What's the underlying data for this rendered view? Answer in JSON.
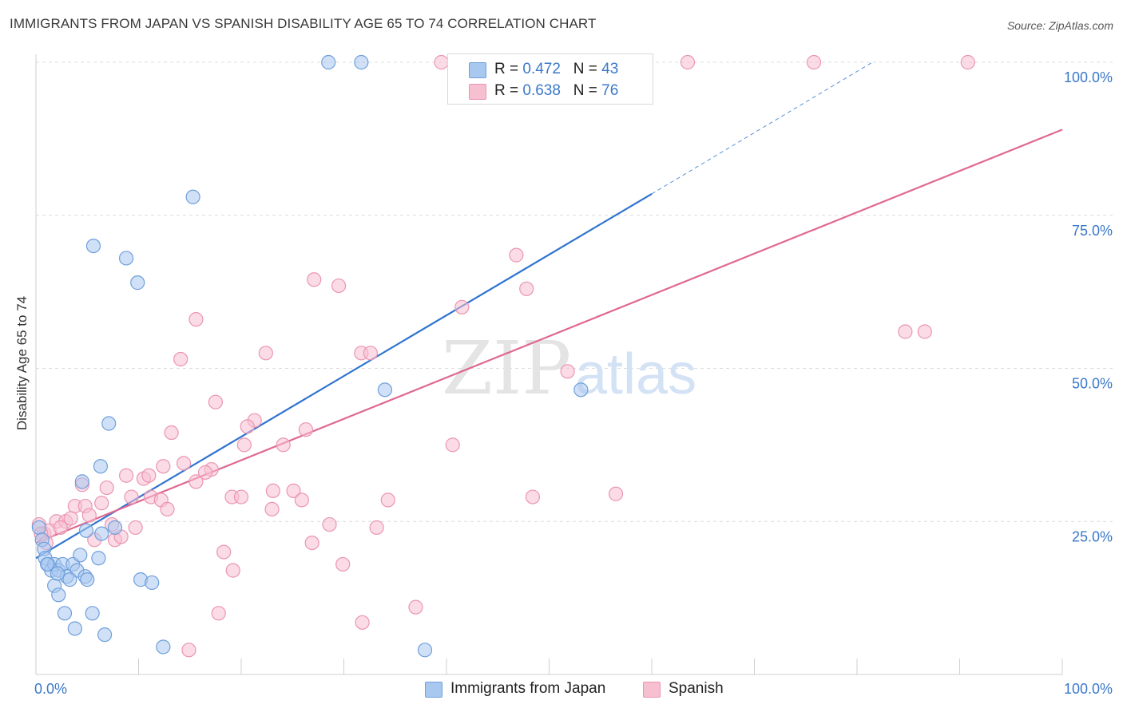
{
  "title": "IMMIGRANTS FROM JAPAN VS SPANISH DISABILITY AGE 65 TO 74 CORRELATION CHART",
  "source": "Source: ZipAtlas.com",
  "watermark": {
    "zip": "ZIP",
    "atlas": "atlas"
  },
  "colors": {
    "japan_fill": "#a9c8f0",
    "japan_stroke": "#6f9fdb",
    "japan_line": "#2f74d0",
    "spanish_fill": "#f7c0d1",
    "spanish_stroke": "#ea95b1",
    "spanish_line": "#e06890",
    "axis_label": "#3a78c9",
    "grid": "#dcdcdc"
  },
  "legend": {
    "japan": {
      "r_label": "R = ",
      "r_value": "0.472",
      "n_label": "N = ",
      "n_value": "43"
    },
    "spanish": {
      "r_label": "R = ",
      "r_value": "0.638",
      "n_label": "N = ",
      "n_value": "76"
    }
  },
  "bottom_legend": {
    "japan": "Immigrants from Japan",
    "spanish": "Spanish"
  },
  "chart_data": {
    "type": "scatter",
    "ylabel": "Disability Age 65 to 74",
    "xlim": [
      0,
      100
    ],
    "ylim": [
      0,
      100
    ],
    "x_tick_labels": [
      "0.0%",
      "100.0%"
    ],
    "y_tick_labels": [
      "25.0%",
      "50.0%",
      "75.0%",
      "100.0%"
    ],
    "y_ticks": [
      25,
      50,
      75,
      100
    ],
    "grid": true,
    "legend_position": "top-center",
    "series": [
      {
        "name": "Immigrants from Japan",
        "points": [
          [
            28.5,
            100
          ],
          [
            31.7,
            100
          ],
          [
            15.3,
            78
          ],
          [
            5.6,
            70
          ],
          [
            8.8,
            68
          ],
          [
            9.9,
            64
          ],
          [
            34.0,
            46.5
          ],
          [
            53.1,
            46.5
          ],
          [
            7.1,
            41
          ],
          [
            6.3,
            34
          ],
          [
            4.5,
            31.5
          ],
          [
            0.3,
            24
          ],
          [
            0.6,
            22
          ],
          [
            0.8,
            20.5
          ],
          [
            0.9,
            19
          ],
          [
            1.2,
            18
          ],
          [
            1.5,
            17
          ],
          [
            1.8,
            18
          ],
          [
            2.2,
            17
          ],
          [
            2.6,
            18
          ],
          [
            3.0,
            16
          ],
          [
            3.6,
            18
          ],
          [
            4.0,
            17
          ],
          [
            4.3,
            19.5
          ],
          [
            4.8,
            16
          ],
          [
            5.0,
            15.5
          ],
          [
            6.1,
            19
          ],
          [
            7.7,
            24
          ],
          [
            6.4,
            23
          ],
          [
            1.8,
            14.5
          ],
          [
            2.2,
            13
          ],
          [
            2.8,
            10
          ],
          [
            3.8,
            7.5
          ],
          [
            5.5,
            10
          ],
          [
            6.7,
            6.5
          ],
          [
            10.2,
            15.5
          ],
          [
            11.3,
            15
          ],
          [
            12.4,
            4.5
          ],
          [
            37.9,
            4
          ],
          [
            1.1,
            18
          ],
          [
            2.1,
            16.5
          ],
          [
            3.3,
            15.5
          ],
          [
            4.9,
            23.5
          ]
        ]
      },
      {
        "name": "Spanish",
        "points": [
          [
            39.5,
            100
          ],
          [
            63.5,
            100
          ],
          [
            75.8,
            100
          ],
          [
            90.8,
            100
          ],
          [
            46.8,
            68.5
          ],
          [
            47.8,
            63
          ],
          [
            27.1,
            64.5
          ],
          [
            29.5,
            63.5
          ],
          [
            41.5,
            60
          ],
          [
            15.6,
            58
          ],
          [
            84.7,
            56
          ],
          [
            86.6,
            56
          ],
          [
            22.4,
            52.5
          ],
          [
            31.7,
            52.5
          ],
          [
            32.6,
            52.5
          ],
          [
            14.1,
            51.5
          ],
          [
            51.8,
            49.5
          ],
          [
            17.5,
            44.5
          ],
          [
            21.3,
            41.5
          ],
          [
            20.6,
            40.5
          ],
          [
            26.3,
            40
          ],
          [
            13.2,
            39.5
          ],
          [
            20.3,
            37.5
          ],
          [
            24.1,
            37.5
          ],
          [
            40.6,
            37.5
          ],
          [
            12.4,
            34
          ],
          [
            14.4,
            34.5
          ],
          [
            17.1,
            33.5
          ],
          [
            16.5,
            33
          ],
          [
            8.8,
            32.5
          ],
          [
            10.5,
            32
          ],
          [
            11.0,
            32.5
          ],
          [
            15.6,
            31.5
          ],
          [
            4.5,
            31
          ],
          [
            6.9,
            30.5
          ],
          [
            23.1,
            30
          ],
          [
            25.1,
            30
          ],
          [
            9.3,
            29
          ],
          [
            11.2,
            29
          ],
          [
            12.2,
            28.5
          ],
          [
            19.1,
            29
          ],
          [
            20.0,
            29
          ],
          [
            25.9,
            28.5
          ],
          [
            34.3,
            28.5
          ],
          [
            48.4,
            29
          ],
          [
            56.5,
            29.5
          ],
          [
            3.8,
            27.5
          ],
          [
            4.8,
            27.5
          ],
          [
            6.4,
            28
          ],
          [
            12.8,
            27
          ],
          [
            23.0,
            27
          ],
          [
            2.0,
            25
          ],
          [
            2.9,
            25
          ],
          [
            3.4,
            25.5
          ],
          [
            0.3,
            24.5
          ],
          [
            0.8,
            23
          ],
          [
            1.3,
            23.5
          ],
          [
            7.4,
            24.5
          ],
          [
            9.7,
            24
          ],
          [
            28.6,
            24.5
          ],
          [
            33.2,
            24
          ],
          [
            5.7,
            22
          ],
          [
            7.7,
            22
          ],
          [
            8.3,
            22.5
          ],
          [
            26.9,
            21.5
          ],
          [
            18.3,
            20
          ],
          [
            29.9,
            18
          ],
          [
            19.2,
            17
          ],
          [
            17.8,
            10
          ],
          [
            31.8,
            8.5
          ],
          [
            37.0,
            11
          ],
          [
            14.9,
            4
          ],
          [
            0.5,
            23
          ],
          [
            1.0,
            21.5
          ],
          [
            2.4,
            24
          ],
          [
            5.2,
            26
          ]
        ]
      }
    ],
    "trendlines": [
      {
        "series": "Immigrants from Japan",
        "start": [
          0,
          19
        ],
        "end": [
          60,
          78.5
        ],
        "dashed_extension_to": [
          81.5,
          100
        ]
      },
      {
        "series": "Spanish",
        "start": [
          0,
          21.5
        ],
        "end": [
          100,
          89
        ]
      }
    ]
  }
}
